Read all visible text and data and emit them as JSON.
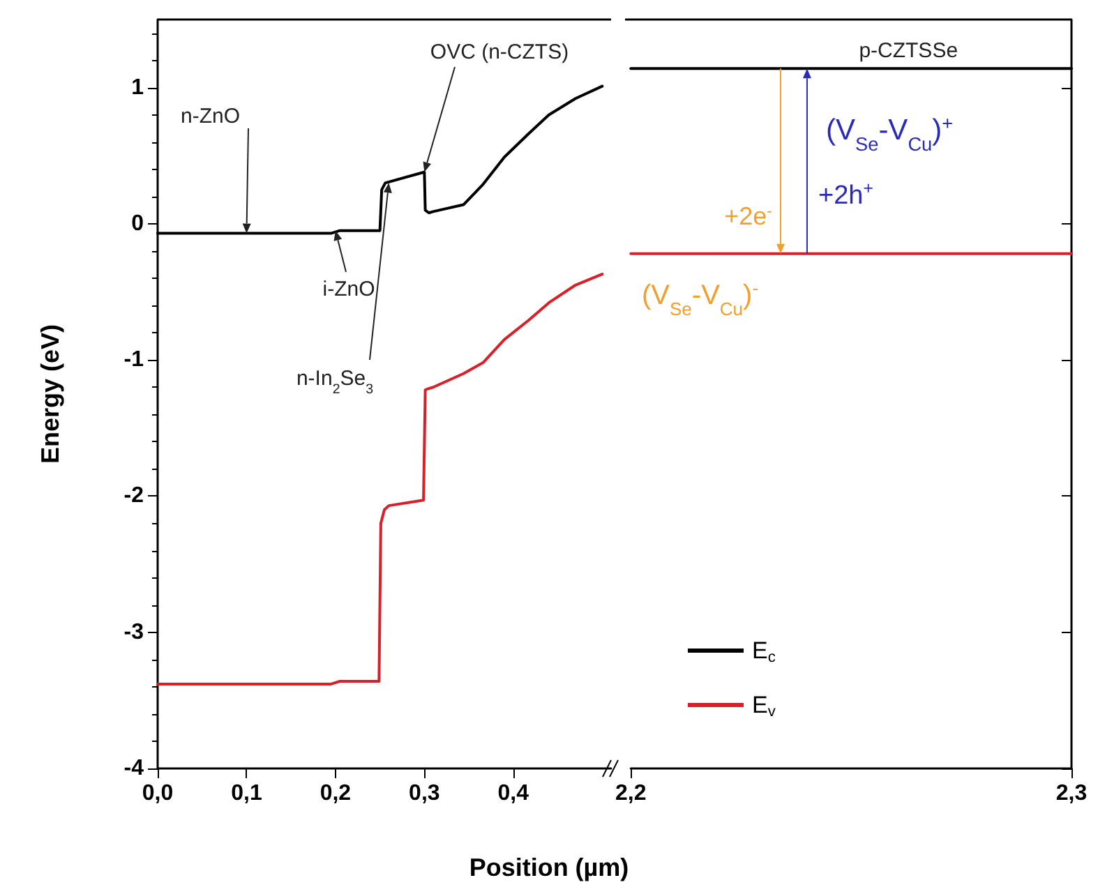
{
  "chart_data": [
    {
      "type": "line",
      "xlabel": "Position (µm)",
      "ylabel": "Energy (eV)",
      "marker": "none",
      "xlim": [
        0,
        0.51
      ],
      "xticks": [
        {
          "value": 0,
          "label": "0,0"
        },
        {
          "value": 0.1,
          "label": "0,1"
        },
        {
          "value": 0.2,
          "label": "0,2"
        },
        {
          "value": 0.3,
          "label": "0,3"
        },
        {
          "value": 0.4,
          "label": "0,4"
        }
      ],
      "ylim": [
        -4,
        1.5
      ],
      "yticks": [
        -4,
        -3,
        -2,
        -1,
        0,
        1
      ],
      "series": [
        {
          "color": "#000000",
          "x": [
            0,
            0.1,
            0.195,
            0.205,
            0.25,
            0.252,
            0.256,
            0.3,
            0.301,
            0.305,
            0.31,
            0.344,
            0.366,
            0.39,
            0.417,
            0.44,
            0.47,
            0.5
          ],
          "values": [
            -0.07,
            -0.07,
            -0.07,
            -0.05,
            -0.05,
            0.25,
            0.3,
            0.38,
            0.1,
            0.08,
            0.09,
            0.14,
            0.29,
            0.49,
            0.66,
            0.8,
            0.92,
            1.01
          ]
        },
        {
          "color": "#d8202a",
          "x": [
            0,
            0.195,
            0.205,
            0.249,
            0.251,
            0.255,
            0.26,
            0.299,
            0.301,
            0.305,
            0.31,
            0.344,
            0.366,
            0.39,
            0.417,
            0.44,
            0.47,
            0.5
          ],
          "values": [
            -3.38,
            -3.38,
            -3.36,
            -3.36,
            -2.2,
            -2.1,
            -2.07,
            -2.03,
            -1.22,
            -1.21,
            -1.2,
            -1.1,
            -1.02,
            -0.85,
            -0.71,
            -0.58,
            -0.45,
            -0.37
          ]
        }
      ],
      "annotations": [
        {
          "text": "n-ZnO",
          "x": 0.1,
          "y": -0.07
        },
        {
          "text": "i-ZnO",
          "x": 0.2,
          "y": -0.05
        },
        {
          "text": "n-In$_{2}$Se$_{3}$",
          "x": 0.26,
          "y": 0.3
        },
        {
          "text": "OVC (n-CZTS)",
          "x": 0.3,
          "y": 0.38
        }
      ]
    },
    {
      "type": "line",
      "marker": "none",
      "tick_labels": "x",
      "legend": "bottom left",
      "xlim": [
        2.2,
        2.3
      ],
      "xticks": [
        {
          "value": 2.2,
          "label": "2,2"
        },
        {
          "value": 2.3,
          "label": "2,3"
        }
      ],
      "ylim": [
        -4,
        1.5
      ],
      "yticks": [
        -4,
        -3,
        -2,
        -1,
        0,
        1
      ],
      "series": [
        {
          "name": "E$_{c}$",
          "color": "#000000",
          "x": [
            2.2,
            2.3
          ],
          "values": [
            1.14,
            1.14
          ]
        },
        {
          "name": "E$_{v}$",
          "color": "#d8202a",
          "x": [
            2.2,
            2.3
          ],
          "values": [
            -0.22,
            -0.22
          ]
        }
      ],
      "annotations": [
        {
          "text": "p-CZTSSe",
          "x": 2.263,
          "y": 1.14
        },
        "(V$_{Se}$-V$_{Cu}$)$^{+}$",
        {
          "text": "+2h$^{+}$",
          "x": 2.24,
          "y": -0.22
        },
        {
          "text": "+2e$^{-}$",
          "x": 2.234,
          "y": -0.22
        },
        "(V$_{Se}$-V$_{Cu}$)$^{-}$"
      ]
    }
  ]
}
